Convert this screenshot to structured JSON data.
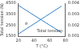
{
  "chart_data": {
    "type": "line",
    "x_label": "T (°C)",
    "y_label": "Total tension (N)",
    "x": [
      20,
      25,
      30,
      35,
      40,
      45,
      50,
      55,
      60,
      65,
      70,
      75
    ],
    "series": [
      {
        "name": "Total tension",
        "color": "#2f7fc8",
        "axis": "y",
        "values": [
          4300,
          4080,
          3850,
          3620,
          3400,
          3170,
          2950,
          2720,
          2500,
          2280,
          2050,
          1830
        ]
      },
      {
        "name": "σ",
        "color": "#2f7fc8",
        "axis": "y2",
        "values": [
          0.0012,
          0.00143,
          0.00166,
          0.00189,
          0.00212,
          0.00235,
          0.00258,
          0.00281,
          0.00304,
          0.00327,
          0.0035,
          0.00373
        ]
      }
    ],
    "xlim": [
      20,
      80
    ],
    "xticks": [
      20,
      40,
      60,
      80
    ],
    "ylim": [
      1500,
      4500
    ],
    "yticks": [
      1500,
      2500,
      3500,
      4500
    ],
    "y2lim": [
      0.001,
      0.004
    ],
    "y2ticks": [
      0.001,
      0.002,
      0.003,
      0.004
    ],
    "grid": false
  }
}
